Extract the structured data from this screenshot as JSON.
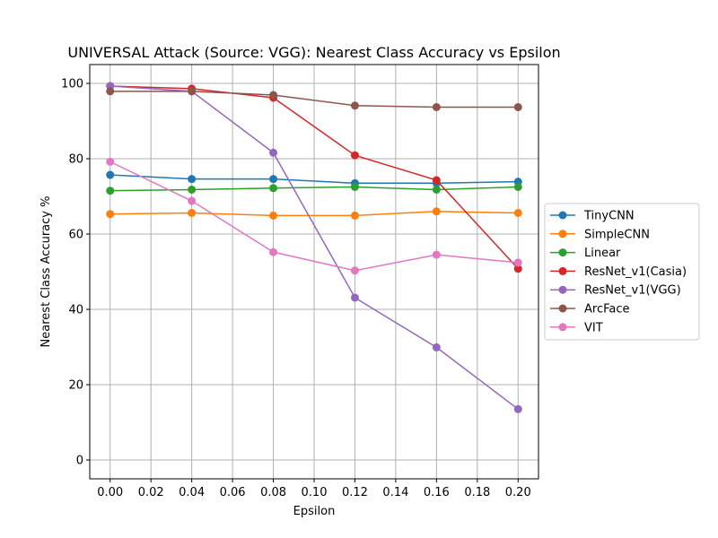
{
  "chart_data": {
    "type": "line",
    "title": "UNIVERSAL Attack (Source: VGG): Nearest Class Accuracy vs Epsilon",
    "xlabel": "Epsilon",
    "ylabel": "Nearest Class Accuracy %",
    "x": [
      0.0,
      0.04,
      0.08,
      0.12,
      0.16,
      0.2
    ],
    "xlim": [
      -0.01,
      0.21
    ],
    "ylim": [
      -5,
      105
    ],
    "xticks": [
      0.0,
      0.02,
      0.04,
      0.06,
      0.08,
      0.1,
      0.12,
      0.14,
      0.16,
      0.18,
      0.2
    ],
    "xtick_labels": [
      "0.00",
      "0.02",
      "0.04",
      "0.06",
      "0.08",
      "0.10",
      "0.12",
      "0.14",
      "0.16",
      "0.18",
      "0.20"
    ],
    "yticks": [
      0,
      20,
      40,
      60,
      80,
      100
    ],
    "ytick_labels": [
      "0",
      "20",
      "40",
      "60",
      "80",
      "100"
    ],
    "grid": true,
    "legend_position": "right, outside plot",
    "series": [
      {
        "name": "TinyCNN",
        "color": "#1f77b4",
        "values": [
          75.7,
          74.6,
          74.6,
          73.5,
          73.5,
          73.9
        ]
      },
      {
        "name": "SimpleCNN",
        "color": "#ff7f0e",
        "values": [
          65.3,
          65.6,
          64.9,
          64.9,
          66.0,
          65.6
        ]
      },
      {
        "name": "Linear",
        "color": "#2ca02c",
        "values": [
          71.5,
          71.8,
          72.2,
          72.5,
          71.8,
          72.5
        ]
      },
      {
        "name": "ResNet_v1(Casia)",
        "color": "#d62728",
        "values": [
          99.3,
          98.6,
          96.2,
          80.9,
          74.3,
          50.8
        ]
      },
      {
        "name": "ResNet_v1(VGG)",
        "color": "#9467bd",
        "values": [
          99.3,
          97.9,
          81.6,
          43.1,
          29.9,
          13.5
        ]
      },
      {
        "name": "ArcFace",
        "color": "#8c564b",
        "values": [
          97.9,
          97.9,
          96.9,
          94.1,
          93.7,
          93.7
        ]
      },
      {
        "name": "VIT",
        "color": "#e377c2",
        "values": [
          79.2,
          68.8,
          55.2,
          50.3,
          54.5,
          52.4
        ]
      }
    ]
  }
}
